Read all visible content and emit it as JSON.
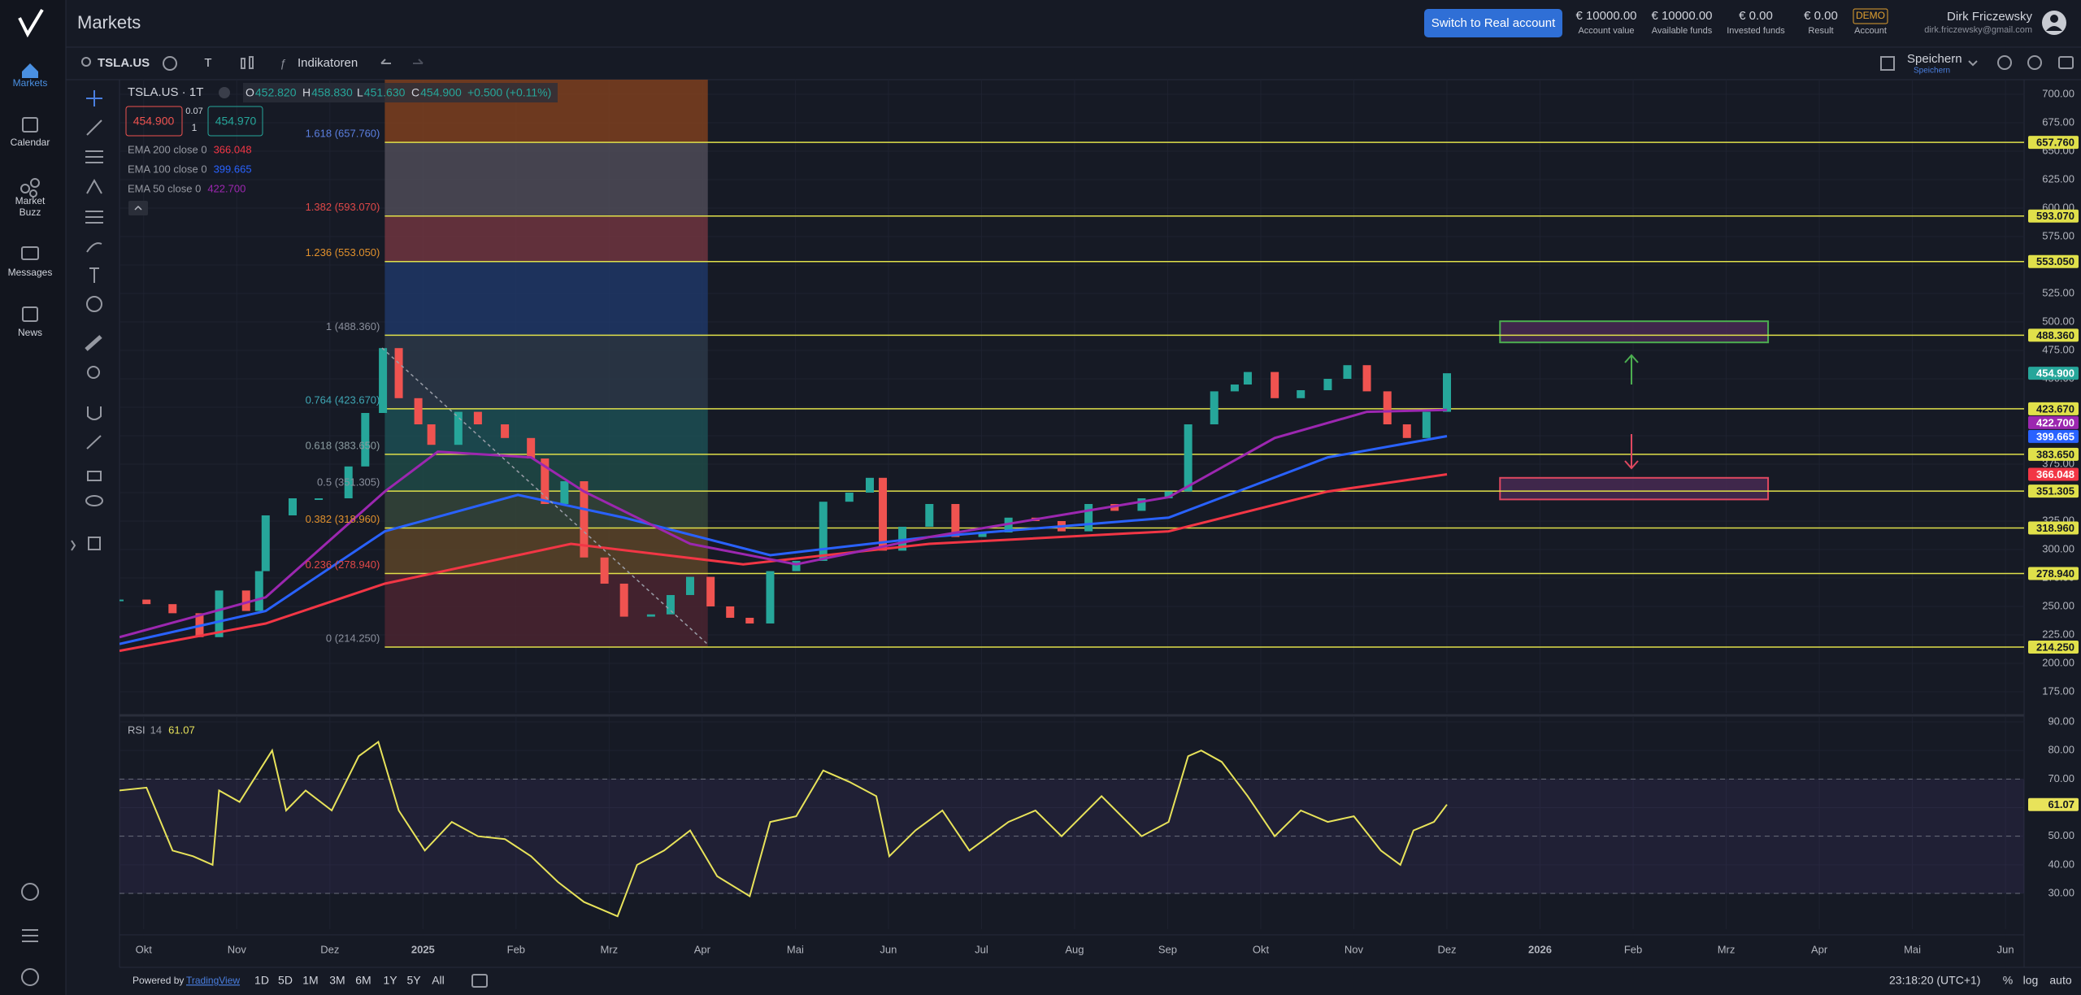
{
  "sidebar": {
    "items": [
      {
        "lines": [
          "Markets"
        ]
      },
      {
        "lines": [
          "Calendar"
        ]
      },
      {
        "lines": [
          "Market",
          "Buzz"
        ]
      },
      {
        "lines": [
          "Messages"
        ]
      },
      {
        "lines": [
          "News"
        ]
      }
    ]
  },
  "header": {
    "title": "Markets",
    "button": "Switch to Real account",
    "stats": [
      {
        "value": "€ 10000.00",
        "label": "Account value"
      },
      {
        "value": "€ 10000.00",
        "label": "Available funds"
      },
      {
        "value": "€ 0.00",
        "label": "Invested funds"
      },
      {
        "value": "€ 0.00",
        "label": "Result"
      },
      {
        "value": "DEMO",
        "label": "Account"
      }
    ],
    "user": {
      "name": "Dirk Friczewsky",
      "email": "dirk.friczewsky@gmail.com"
    }
  },
  "toolbar": {
    "symbol": "TSLA.US",
    "chart_type": "T",
    "indicators": "Indikatoren",
    "save": "Speichern",
    "save_sub": "Speichern"
  },
  "legend": {
    "title": "TSLA.US · 1T",
    "ohlc": [
      {
        "key": "O",
        "value": "452.820"
      },
      {
        "key": "H",
        "value": "458.830"
      },
      {
        "key": "L",
        "value": "451.630"
      },
      {
        "key": "C",
        "value": "454.900"
      }
    ],
    "change": "+0.500 (+0.11%)",
    "bid": "454.900",
    "spread": "0.07",
    "qty": "1",
    "ask": "454.970"
  },
  "bottom_bar": {
    "powered": "Powered by",
    "link": "TradingView",
    "ranges": [
      "1D",
      "5D",
      "1M",
      "3M",
      "6M",
      "1Y",
      "5Y",
      "All"
    ],
    "time": "23:18:20 (UTC+1)",
    "percent": "%",
    "log": "log",
    "auto": "auto"
  },
  "chart_data": {
    "type": "candlestick",
    "up_color": "#26a69a",
    "down_color": "#ef5350",
    "x": [
      -0.26,
      0.03,
      0.31,
      0.6,
      0.81,
      1.1,
      1.24,
      1.31,
      1.6,
      1.88,
      2.2,
      2.38,
      2.57,
      2.74,
      2.95,
      3.09,
      3.38,
      3.59,
      3.88,
      4.16,
      4.31,
      4.52,
      4.73,
      4.95,
      5.16,
      5.45,
      5.66,
      5.87,
      6.09,
      6.3,
      6.51,
      6.73,
      7.01,
      7.3,
      7.58,
      7.8,
      7.94,
      8.15,
      8.44,
      8.72,
      9.01,
      9.29,
      9.58,
      9.86,
      10.15,
      10.43,
      10.72,
      11.01,
      11.22,
      11.5,
      11.72,
      11.86,
      12.15,
      12.43,
      12.72,
      12.93,
      13.14,
      13.36,
      13.57,
      13.78,
      14.0
    ],
    "values": [
      256,
      252,
      244,
      223,
      264,
      246,
      281,
      330,
      345,
      345,
      373,
      420,
      477,
      433,
      410,
      392,
      421,
      410,
      398,
      380,
      340,
      360,
      293,
      270,
      241,
      243,
      260,
      276,
      250,
      240,
      235,
      281,
      290,
      342,
      350,
      363,
      299,
      320,
      340,
      311,
      315,
      328,
      325,
      316,
      340,
      334,
      345,
      351,
      410,
      439,
      445,
      456,
      433,
      440,
      450,
      462,
      439,
      410,
      398,
      421,
      454.9
    ],
    "xlim": [
      -0.26,
      20.2
    ],
    "xticks": [
      {
        "value": 0,
        "label": "Okt"
      },
      {
        "value": 1,
        "label": "Nov"
      },
      {
        "value": 2,
        "label": "Dez"
      },
      {
        "value": 3,
        "label": "2025"
      },
      {
        "value": 4,
        "label": "Feb"
      },
      {
        "value": 5,
        "label": "Mrz"
      },
      {
        "value": 6,
        "label": "Apr"
      },
      {
        "value": 7,
        "label": "Mai"
      },
      {
        "value": 8,
        "label": "Jun"
      },
      {
        "value": 9,
        "label": "Jul"
      },
      {
        "value": 10,
        "label": "Aug"
      },
      {
        "value": 11,
        "label": "Sep"
      },
      {
        "value": 12,
        "label": "Okt"
      },
      {
        "value": 13,
        "label": "Nov"
      },
      {
        "value": 14,
        "label": "Dez"
      },
      {
        "value": 15,
        "label": "2026"
      },
      {
        "value": 16,
        "label": "Feb"
      },
      {
        "value": 17,
        "label": "Mrz"
      },
      {
        "value": 18,
        "label": "Apr"
      },
      {
        "value": 19,
        "label": "Mai"
      },
      {
        "value": 20,
        "label": "Jun"
      }
    ],
    "ylim": [
      156.4,
      712.9
    ],
    "yticks": [
      {
        "value": 700,
        "label": "700.00"
      },
      {
        "value": 675,
        "label": "675.00"
      },
      {
        "value": 650,
        "label": "650.00"
      },
      {
        "value": 625,
        "label": "625.00"
      },
      {
        "value": 600,
        "label": "600.00"
      },
      {
        "value": 575,
        "label": "575.00"
      },
      {
        "value": 550,
        "label": "550.00"
      },
      {
        "value": 525,
        "label": "525.00"
      },
      {
        "value": 500,
        "label": "500.00"
      },
      {
        "value": 475,
        "label": "475.00"
      },
      {
        "value": 450,
        "label": "450.00"
      },
      {
        "value": 425,
        "label": "425.00"
      },
      {
        "value": 400,
        "label": "400.00"
      },
      {
        "value": 375,
        "label": "375.00"
      },
      {
        "value": 350,
        "label": "350.00"
      },
      {
        "value": 325,
        "label": "325.00"
      },
      {
        "value": 300,
        "label": "300.00"
      },
      {
        "value": 275,
        "label": "275.00"
      },
      {
        "value": 250,
        "label": "250.00"
      },
      {
        "value": 225,
        "label": "225.00"
      },
      {
        "value": 200,
        "label": "200.00"
      },
      {
        "value": 175,
        "label": "175.00"
      }
    ],
    "series": [
      {
        "name": "EMA 200 close 0",
        "color": "#f23645",
        "last_label": "366.048",
        "x": [
          -0.26,
          1.31,
          2.59,
          4.59,
          6.44,
          8.44,
          11.01,
          12.72,
          14.0
        ],
        "values": [
          211,
          235,
          270,
          305,
          287,
          305,
          316,
          351,
          366.048
        ]
      },
      {
        "name": "EMA 100 close 0",
        "color": "#2962ff",
        "last_label": "399.665",
        "x": [
          -0.26,
          1.31,
          2.59,
          4.02,
          5.16,
          6.73,
          8.44,
          11.01,
          12.72,
          14.0
        ],
        "values": [
          217,
          246,
          316,
          348,
          328,
          295,
          311,
          328,
          381,
          399.665
        ]
      },
      {
        "name": "EMA 50 close 0",
        "color": "#9c27b0",
        "last_label": "422.700",
        "x": [
          -0.26,
          1.31,
          2.59,
          3.16,
          4.16,
          4.73,
          5.87,
          7.01,
          8.44,
          11.01,
          12.15,
          13.14,
          14.0
        ],
        "values": [
          223,
          258,
          351,
          386,
          381,
          351,
          305,
          287,
          311,
          346,
          398,
          421,
          422.7
        ]
      }
    ],
    "last_price": {
      "value": 454.9,
      "label": "454.900",
      "color": "#26a69a"
    },
    "level_color": "#e0e04a",
    "fib_x": [
      2.59,
      6.06
    ],
    "levels": [
      {
        "value": 657.76,
        "label": "657.760",
        "fib": "1.618 (657.760)",
        "fib_color": "#5b7fe0",
        "zone": "#7c3f1f"
      },
      {
        "value": 593.07,
        "label": "593.070",
        "fib": "1.382 (593.070)",
        "fib_color": "#e04848",
        "zone": "#4d4b57"
      },
      {
        "value": 553.05,
        "label": "553.050",
        "fib": "1.236 (553.050)",
        "fib_color": "#e0902c",
        "zone": "#6e3540"
      },
      {
        "value": 488.36,
        "label": "488.360",
        "fib": "1 (488.360)",
        "fib_color": "#8a8f9c",
        "zone": "#1f3766"
      },
      {
        "value": 423.67,
        "label": "423.670",
        "fib": "0.764 (423.670)",
        "fib_color": "#3fa7b5",
        "zone": "#2b3848"
      },
      {
        "value": 383.65,
        "label": "383.650",
        "fib": "0.618 (383.650)",
        "fib_color": "#8a9ca0",
        "zone": "#1c4f54"
      },
      {
        "value": 351.305,
        "label": "351.305",
        "fib": "0.5 (351.305)",
        "fib_color": "#8a8f9c",
        "zone": "#1f4a46"
      },
      {
        "value": 318.96,
        "label": "318.960",
        "fib": "0.382 (318.960)",
        "fib_color": "#e0902c",
        "zone": "#34453a"
      },
      {
        "value": 278.94,
        "label": "278.940",
        "fib": "0.236 (278.940)",
        "fib_color": "#e04848",
        "zone": "#5a4428"
      },
      {
        "value": 214.25,
        "label": "214.250",
        "fib": "0 (214.250)",
        "fib_color": "#8a8f9c",
        "zone": "#4a2530"
      }
    ],
    "boxes": [
      {
        "top": 500.6,
        "bottom": 482,
        "x": [
          14.57,
          17.45
        ],
        "color": "#4caf50",
        "fill": "#4a2a55"
      },
      {
        "top": 363,
        "bottom": 344,
        "x": [
          14.57,
          17.45
        ],
        "color": "#e04860",
        "fill": "#4a2a55"
      }
    ],
    "rsi": {
      "title": "RSI",
      "period": "14",
      "color": "#e8e35a",
      "band_color": "#7e57c2",
      "x": [
        -0.26,
        0.03,
        0.31,
        0.53,
        0.74,
        0.81,
        1.03,
        1.38,
        1.53,
        1.74,
        2.02,
        2.31,
        2.52,
        2.74,
        3.02,
        3.31,
        3.59,
        3.88,
        4.16,
        4.45,
        4.73,
        5.09,
        5.3,
        5.59,
        5.87,
        6.16,
        6.51,
        6.73,
        7.01,
        7.3,
        7.58,
        7.87,
        8.01,
        8.29,
        8.58,
        8.87,
        9.29,
        9.58,
        9.86,
        10.29,
        10.72,
        11.01,
        11.22,
        11.36,
        11.58,
        11.86,
        12.15,
        12.43,
        12.72,
        13.0,
        13.29,
        13.5,
        13.64,
        13.86,
        14.0
      ],
      "values": [
        66,
        67,
        45,
        43,
        40,
        66,
        62,
        80,
        59,
        66,
        59,
        78,
        83,
        59,
        45,
        55,
        50,
        49,
        43,
        34,
        27,
        22,
        40,
        45,
        52,
        36,
        29,
        55,
        57,
        73,
        69,
        64,
        43,
        52,
        59,
        45,
        55,
        59,
        50,
        64,
        50,
        55,
        78,
        80,
        76,
        64,
        50,
        59,
        55,
        57,
        45,
        40,
        52,
        55,
        61.07
      ],
      "ylim": [
        17.5,
        91.7
      ],
      "yticks": [
        {
          "value": 90,
          "label": "90.00"
        },
        {
          "value": 80,
          "label": "80.00"
        },
        {
          "value": 70,
          "label": "70.00"
        },
        {
          "value": 60,
          "label": "60.00"
        },
        {
          "value": 50,
          "label": "50.00"
        },
        {
          "value": 40,
          "label": "40.00"
        },
        {
          "value": 30,
          "label": "30.00"
        }
      ],
      "levels": [
        70,
        50,
        30
      ]
    }
  }
}
